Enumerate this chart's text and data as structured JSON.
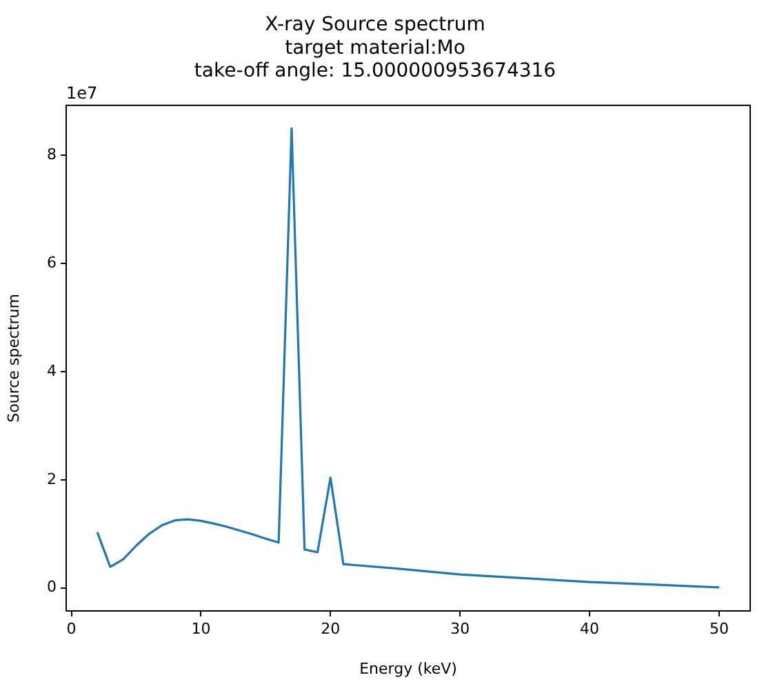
{
  "chart_data": {
    "type": "line",
    "title": "X-ray Source spectrum\ntarget material:Mo\ntake-off angle: 15.000000953674316",
    "xlabel": "Energy (keV)",
    "ylabel": "Source spectrum",
    "annotations": [
      "1e7"
    ],
    "series": [
      {
        "color": "#1f77b4",
        "x": [
          2,
          3,
          4,
          5,
          6,
          7,
          8,
          9,
          10,
          11,
          12,
          13,
          14,
          15,
          16,
          17,
          18,
          19,
          20,
          21,
          25,
          30,
          35,
          40,
          45,
          50
        ],
        "values": [
          1.03,
          0.39,
          0.53,
          0.78,
          1.0,
          1.16,
          1.25,
          1.27,
          1.24,
          1.19,
          1.13,
          1.06,
          0.99,
          0.91,
          0.84,
          8.5,
          0.71,
          0.66,
          2.04,
          0.44,
          0.36,
          0.25,
          0.18,
          0.11,
          0.06,
          0.01
        ]
      }
    ],
    "xlim": [
      -0.4,
      52.4
    ],
    "xticks": [
      0,
      10,
      20,
      30,
      40,
      50
    ],
    "ylim": [
      -0.425,
      8.925
    ],
    "yticks": [
      0,
      2,
      4,
      6,
      8
    ],
    "grid": false,
    "legend": false,
    "marker": "none",
    "line_style": "solid"
  }
}
